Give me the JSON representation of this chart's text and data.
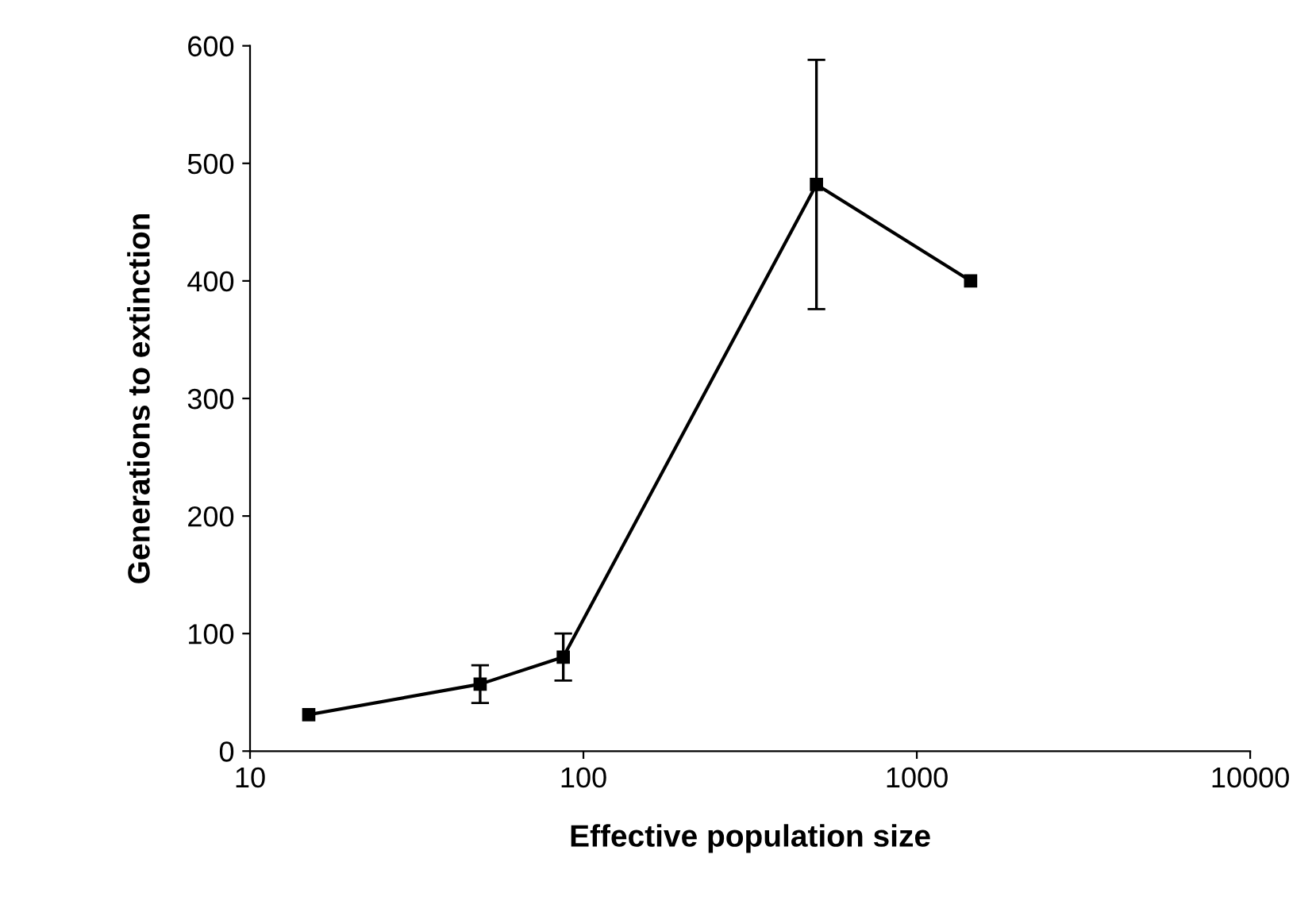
{
  "chart_data": {
    "type": "line",
    "xlabel": "Effective population size",
    "ylabel": "Generations to extinction",
    "x": [
      15,
      49,
      87,
      500,
      1450
    ],
    "values": [
      31,
      57,
      80,
      482,
      400
    ],
    "errors": [
      null,
      16,
      20,
      106,
      null
    ],
    "color": "#000000",
    "marker": "square",
    "line_style": "solid",
    "log": "x",
    "xlim": [
      10,
      10000
    ],
    "xticks": [
      10,
      100,
      1000,
      10000
    ],
    "ylim": [
      0,
      600
    ],
    "yticks": [
      0,
      100,
      200,
      300,
      400,
      500,
      600
    ],
    "grid": false
  }
}
